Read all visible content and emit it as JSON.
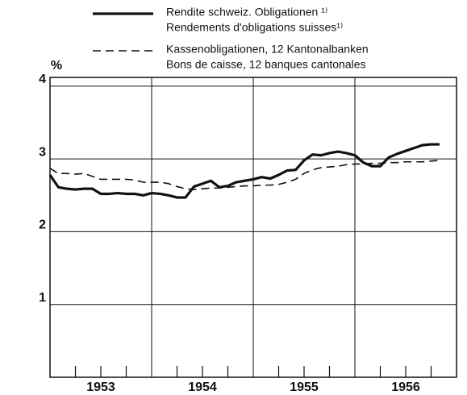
{
  "chart_data": {
    "type": "line",
    "ylabel": "%",
    "x": [
      1953.0,
      1953.083,
      1953.167,
      1953.25,
      1953.333,
      1953.417,
      1953.5,
      1953.583,
      1953.667,
      1953.75,
      1953.833,
      1953.917,
      1954.0,
      1954.083,
      1954.167,
      1954.25,
      1954.333,
      1954.417,
      1954.5,
      1954.583,
      1954.667,
      1954.75,
      1954.833,
      1954.917,
      1955.0,
      1955.083,
      1955.167,
      1955.25,
      1955.333,
      1955.417,
      1955.5,
      1955.583,
      1955.667,
      1955.75,
      1955.833,
      1955.917,
      1956.0,
      1956.083,
      1956.167,
      1956.25,
      1956.333,
      1956.417,
      1956.5,
      1956.583,
      1956.667,
      1956.75,
      1956.833
    ],
    "series": [
      {
        "name": "Rendite schweiz. Obligationen ¹⁾",
        "name_fr": "Rendements d'obligations suisses¹⁾",
        "color": "#111111",
        "style": "solid",
        "values": [
          2.78,
          2.61,
          2.59,
          2.58,
          2.59,
          2.59,
          2.52,
          2.52,
          2.53,
          2.52,
          2.52,
          2.5,
          2.53,
          2.52,
          2.5,
          2.47,
          2.47,
          2.62,
          2.66,
          2.7,
          2.61,
          2.63,
          2.68,
          2.7,
          2.72,
          2.75,
          2.73,
          2.78,
          2.84,
          2.85,
          2.98,
          3.06,
          3.05,
          3.08,
          3.1,
          3.08,
          3.05,
          2.95,
          2.9,
          2.9,
          3.02,
          3.07,
          3.11,
          3.15,
          3.19,
          3.2,
          3.2
        ]
      },
      {
        "name": "Kassenobligationen, 12 Kantonalbanken",
        "name_fr": "Bons de caisse, 12 banques cantonales",
        "color": "#111111",
        "style": "dashed",
        "values": [
          2.87,
          2.8,
          2.8,
          2.79,
          2.8,
          2.76,
          2.72,
          2.72,
          2.72,
          2.72,
          2.71,
          2.68,
          2.68,
          2.68,
          2.66,
          2.62,
          2.59,
          2.58,
          2.59,
          2.6,
          2.6,
          2.61,
          2.62,
          2.63,
          2.63,
          2.64,
          2.64,
          2.65,
          2.68,
          2.72,
          2.8,
          2.85,
          2.88,
          2.89,
          2.9,
          2.92,
          2.93,
          2.93,
          2.94,
          2.94,
          2.95,
          2.95,
          2.96,
          2.96,
          2.96,
          2.97,
          2.98
        ]
      }
    ],
    "xlim": [
      1953,
      1957
    ],
    "xticks": [
      {
        "value": 1953.5,
        "label": "1953"
      },
      {
        "value": 1954.5,
        "label": "1954"
      },
      {
        "value": 1955.5,
        "label": "1955"
      },
      {
        "value": 1956.5,
        "label": "1956"
      }
    ],
    "xgrid": [
      1954,
      1955,
      1956
    ],
    "xminor": [
      1953.25,
      1953.5,
      1953.75,
      1954.25,
      1954.5,
      1954.75,
      1955.25,
      1955.5,
      1955.75,
      1956.25,
      1956.5,
      1956.75
    ],
    "ylim": [
      0,
      4.12
    ],
    "yticks": [
      1,
      2,
      3,
      4
    ],
    "grid": true,
    "legend": "top"
  }
}
